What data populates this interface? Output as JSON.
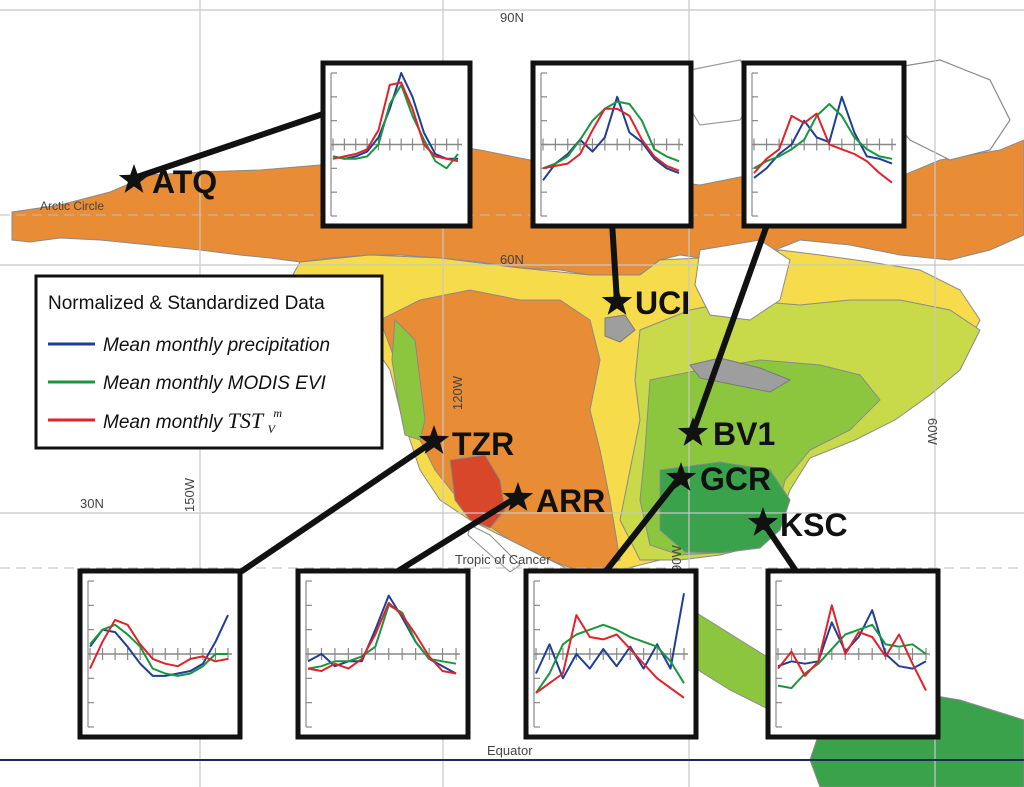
{
  "grid": {
    "lat_90n": "90N",
    "lat_60n": "60N",
    "lat_30n": "30N",
    "lon_150w": "150W",
    "lon_120w": "120W",
    "lon_90w": "90W",
    "lon_60w": "60W",
    "arctic_circle": "Arctic Circle",
    "tropic_of_cancer": "Tropic of Cancer",
    "equator": "Equator"
  },
  "legend": {
    "title": "Normalized & Standardized Data",
    "items": [
      {
        "label": "Mean monthly precipitation",
        "color": "#1f3f94"
      },
      {
        "label": "Mean monthly MODIS EVI",
        "color": "#1a9641"
      },
      {
        "label": "Mean monthly ",
        "math": "TST",
        "sub": "V",
        "sup": "m",
        "color": "#e0232a"
      }
    ]
  },
  "stations": [
    {
      "id": "ATQ"
    },
    {
      "id": "UCI"
    },
    {
      "id": "BV1"
    },
    {
      "id": "TZR"
    },
    {
      "id": "ARR"
    },
    {
      "id": "GCR"
    },
    {
      "id": "KSC"
    }
  ],
  "colors": {
    "ocean": "#ffffff",
    "zone_orange": "#e98c36",
    "zone_orange_dark": "#e06a2a",
    "zone_red": "#d9472a",
    "zone_yellow": "#f6dc4a",
    "zone_yellowgreen": "#c8d94a",
    "zone_green": "#8cc63f",
    "zone_darkgreen": "#3aa24a",
    "precip": "#1f3f94",
    "evi": "#1a9641",
    "tst": "#e0232a"
  },
  "chart_data": [
    {
      "type": "line",
      "station": "ATQ",
      "x": [
        1,
        2,
        3,
        4,
        5,
        6,
        7,
        8,
        9,
        10,
        11,
        12
      ],
      "series": [
        {
          "name": "Mean monthly precipitation",
          "values": [
            -0.5,
            -0.6,
            -0.5,
            -0.3,
            0.3,
            1.5,
            3.0,
            2.0,
            0.5,
            -0.4,
            -0.6,
            -0.6
          ]
        },
        {
          "name": "Mean monthly MODIS EVI",
          "values": [
            -0.5,
            -0.6,
            -0.6,
            -0.5,
            0.0,
            1.7,
            2.5,
            1.2,
            0.2,
            -0.7,
            -1.0,
            -0.4
          ]
        },
        {
          "name": "Mean monthly TST",
          "values": [
            -0.6,
            -0.5,
            -0.4,
            -0.2,
            0.6,
            2.5,
            2.6,
            1.5,
            0.0,
            -0.5,
            -0.6,
            -0.7
          ]
        }
      ],
      "ylim": [
        -3,
        3
      ]
    },
    {
      "type": "line",
      "station": "UCI",
      "x": [
        1,
        2,
        3,
        4,
        5,
        6,
        7,
        8,
        9,
        10,
        11,
        12
      ],
      "series": [
        {
          "name": "Mean monthly precipitation",
          "values": [
            -1.5,
            -0.8,
            -0.4,
            0.2,
            -0.3,
            0.3,
            2.0,
            0.5,
            0.1,
            -0.6,
            -1.0,
            -1.2
          ]
        },
        {
          "name": "Mean monthly MODIS EVI",
          "values": [
            -1.0,
            -0.8,
            -0.5,
            0.2,
            1.0,
            1.5,
            1.8,
            1.7,
            1.0,
            -0.2,
            -0.5,
            -0.7
          ]
        },
        {
          "name": "Mean monthly TST",
          "values": [
            -1.0,
            -0.9,
            -0.8,
            -0.4,
            0.6,
            1.5,
            1.5,
            1.2,
            0.2,
            -0.5,
            -0.9,
            -1.1
          ]
        }
      ],
      "ylim": [
        -3,
        3
      ]
    },
    {
      "type": "line",
      "station": "BV1",
      "x": [
        1,
        2,
        3,
        4,
        5,
        6,
        7,
        8,
        9,
        10,
        11,
        12
      ],
      "series": [
        {
          "name": "Mean monthly precipitation",
          "values": [
            -1.4,
            -1.0,
            -0.4,
            0.0,
            1.0,
            0.3,
            0.1,
            2.0,
            0.5,
            -0.5,
            -0.6,
            -0.8
          ]
        },
        {
          "name": "Mean monthly MODIS EVI",
          "values": [
            -1.0,
            -0.7,
            -0.5,
            -0.2,
            0.2,
            1.2,
            1.7,
            1.2,
            0.3,
            -0.2,
            -0.5,
            -0.6
          ]
        },
        {
          "name": "Mean monthly TST",
          "values": [
            -1.2,
            -0.6,
            -0.2,
            1.2,
            0.9,
            1.3,
            0.0,
            -0.2,
            -0.4,
            -0.7,
            -1.2,
            -1.6
          ]
        }
      ],
      "ylim": [
        -3,
        3
      ]
    },
    {
      "type": "line",
      "station": "TZR",
      "x": [
        1,
        2,
        3,
        4,
        5,
        6,
        7,
        8,
        9,
        10,
        11,
        12
      ],
      "series": [
        {
          "name": "Mean monthly precipitation",
          "values": [
            0.3,
            1.0,
            0.9,
            0.3,
            -0.4,
            -0.9,
            -0.9,
            -0.8,
            -0.7,
            -0.4,
            0.5,
            1.6
          ]
        },
        {
          "name": "Mean monthly MODIS EVI",
          "values": [
            0.4,
            1.0,
            1.2,
            0.8,
            0.3,
            -0.6,
            -0.8,
            -0.9,
            -0.8,
            -0.5,
            0.0,
            0.0
          ]
        },
        {
          "name": "Mean monthly TST",
          "values": [
            -0.6,
            0.5,
            1.4,
            1.2,
            0.4,
            -0.2,
            -0.4,
            -0.5,
            -0.2,
            -0.1,
            -0.3,
            -0.2
          ]
        }
      ],
      "ylim": [
        -3,
        3
      ]
    },
    {
      "type": "line",
      "station": "ARR",
      "x": [
        1,
        2,
        3,
        4,
        5,
        6,
        7,
        8,
        9,
        10,
        11,
        12
      ],
      "series": [
        {
          "name": "Mean monthly precipitation",
          "values": [
            -0.3,
            0.0,
            -0.5,
            -0.3,
            -0.3,
            1.0,
            2.4,
            1.5,
            0.5,
            -0.2,
            -0.5,
            -0.8
          ]
        },
        {
          "name": "Mean monthly MODIS EVI",
          "values": [
            -0.6,
            -0.5,
            -0.3,
            -0.3,
            -0.1,
            0.3,
            2.0,
            1.7,
            0.5,
            -0.2,
            -0.3,
            -0.4
          ]
        },
        {
          "name": "Mean monthly TST",
          "values": [
            -0.6,
            -0.7,
            -0.4,
            -0.6,
            -0.2,
            0.8,
            2.1,
            1.6,
            0.8,
            -0.1,
            -0.7,
            -0.8
          ]
        }
      ],
      "ylim": [
        -3,
        3
      ]
    },
    {
      "type": "line",
      "station": "GCR",
      "x": [
        1,
        2,
        3,
        4,
        5,
        6,
        7,
        8,
        9,
        10,
        11,
        12
      ],
      "series": [
        {
          "name": "Mean monthly precipitation",
          "values": [
            -0.8,
            0.4,
            -1.0,
            0.0,
            -0.6,
            0.2,
            -0.5,
            0.3,
            -0.6,
            0.4,
            -0.6,
            2.5
          ]
        },
        {
          "name": "Mean monthly MODIS EVI",
          "values": [
            -1.6,
            -0.8,
            0.4,
            0.8,
            1.0,
            1.2,
            1.0,
            0.7,
            0.5,
            0.3,
            -0.3,
            -1.2
          ]
        },
        {
          "name": "Mean monthly TST",
          "values": [
            -1.6,
            -1.2,
            -0.8,
            1.6,
            0.7,
            0.6,
            0.8,
            0.2,
            -0.4,
            -1.0,
            -1.4,
            -1.8
          ]
        }
      ],
      "ylim": [
        -3,
        3
      ]
    },
    {
      "type": "line",
      "station": "KSC",
      "x": [
        1,
        2,
        3,
        4,
        5,
        6,
        7,
        8,
        9,
        10,
        11,
        12
      ],
      "series": [
        {
          "name": "Mean monthly precipitation",
          "values": [
            -0.5,
            -0.3,
            -0.4,
            -0.3,
            1.3,
            0.1,
            0.7,
            1.8,
            0.0,
            -0.5,
            -0.6,
            -0.3
          ]
        },
        {
          "name": "Mean monthly MODIS EVI",
          "values": [
            -1.3,
            -1.4,
            -0.8,
            -0.4,
            0.2,
            0.8,
            1.0,
            1.2,
            0.4,
            0.3,
            0.4,
            0.0
          ]
        },
        {
          "name": "Mean monthly TST",
          "values": [
            -0.6,
            0.1,
            -0.9,
            -0.3,
            2.0,
            0.0,
            0.9,
            0.7,
            -0.1,
            0.8,
            -0.4,
            -1.5
          ]
        }
      ],
      "ylim": [
        -3,
        3
      ]
    }
  ]
}
